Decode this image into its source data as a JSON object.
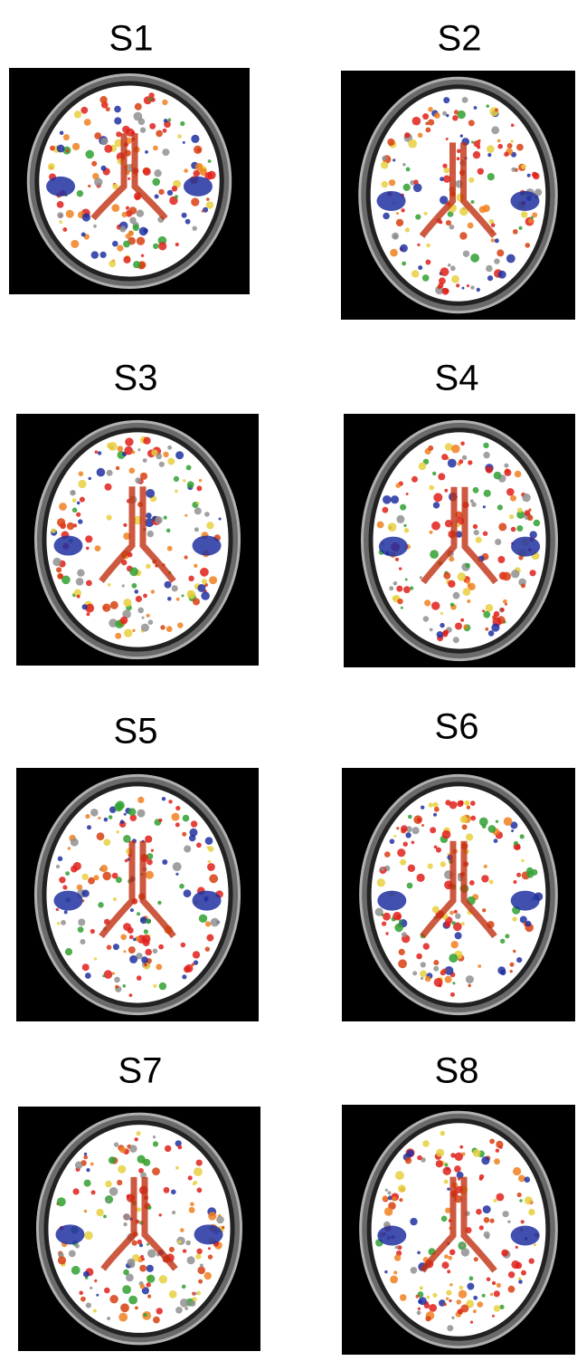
{
  "panels": [
    {
      "label": "S1"
    },
    {
      "label": "S2"
    },
    {
      "label": "S3"
    },
    {
      "label": "S4"
    },
    {
      "label": "S5"
    },
    {
      "label": "S6"
    },
    {
      "label": "S7"
    },
    {
      "label": "S8"
    }
  ]
}
